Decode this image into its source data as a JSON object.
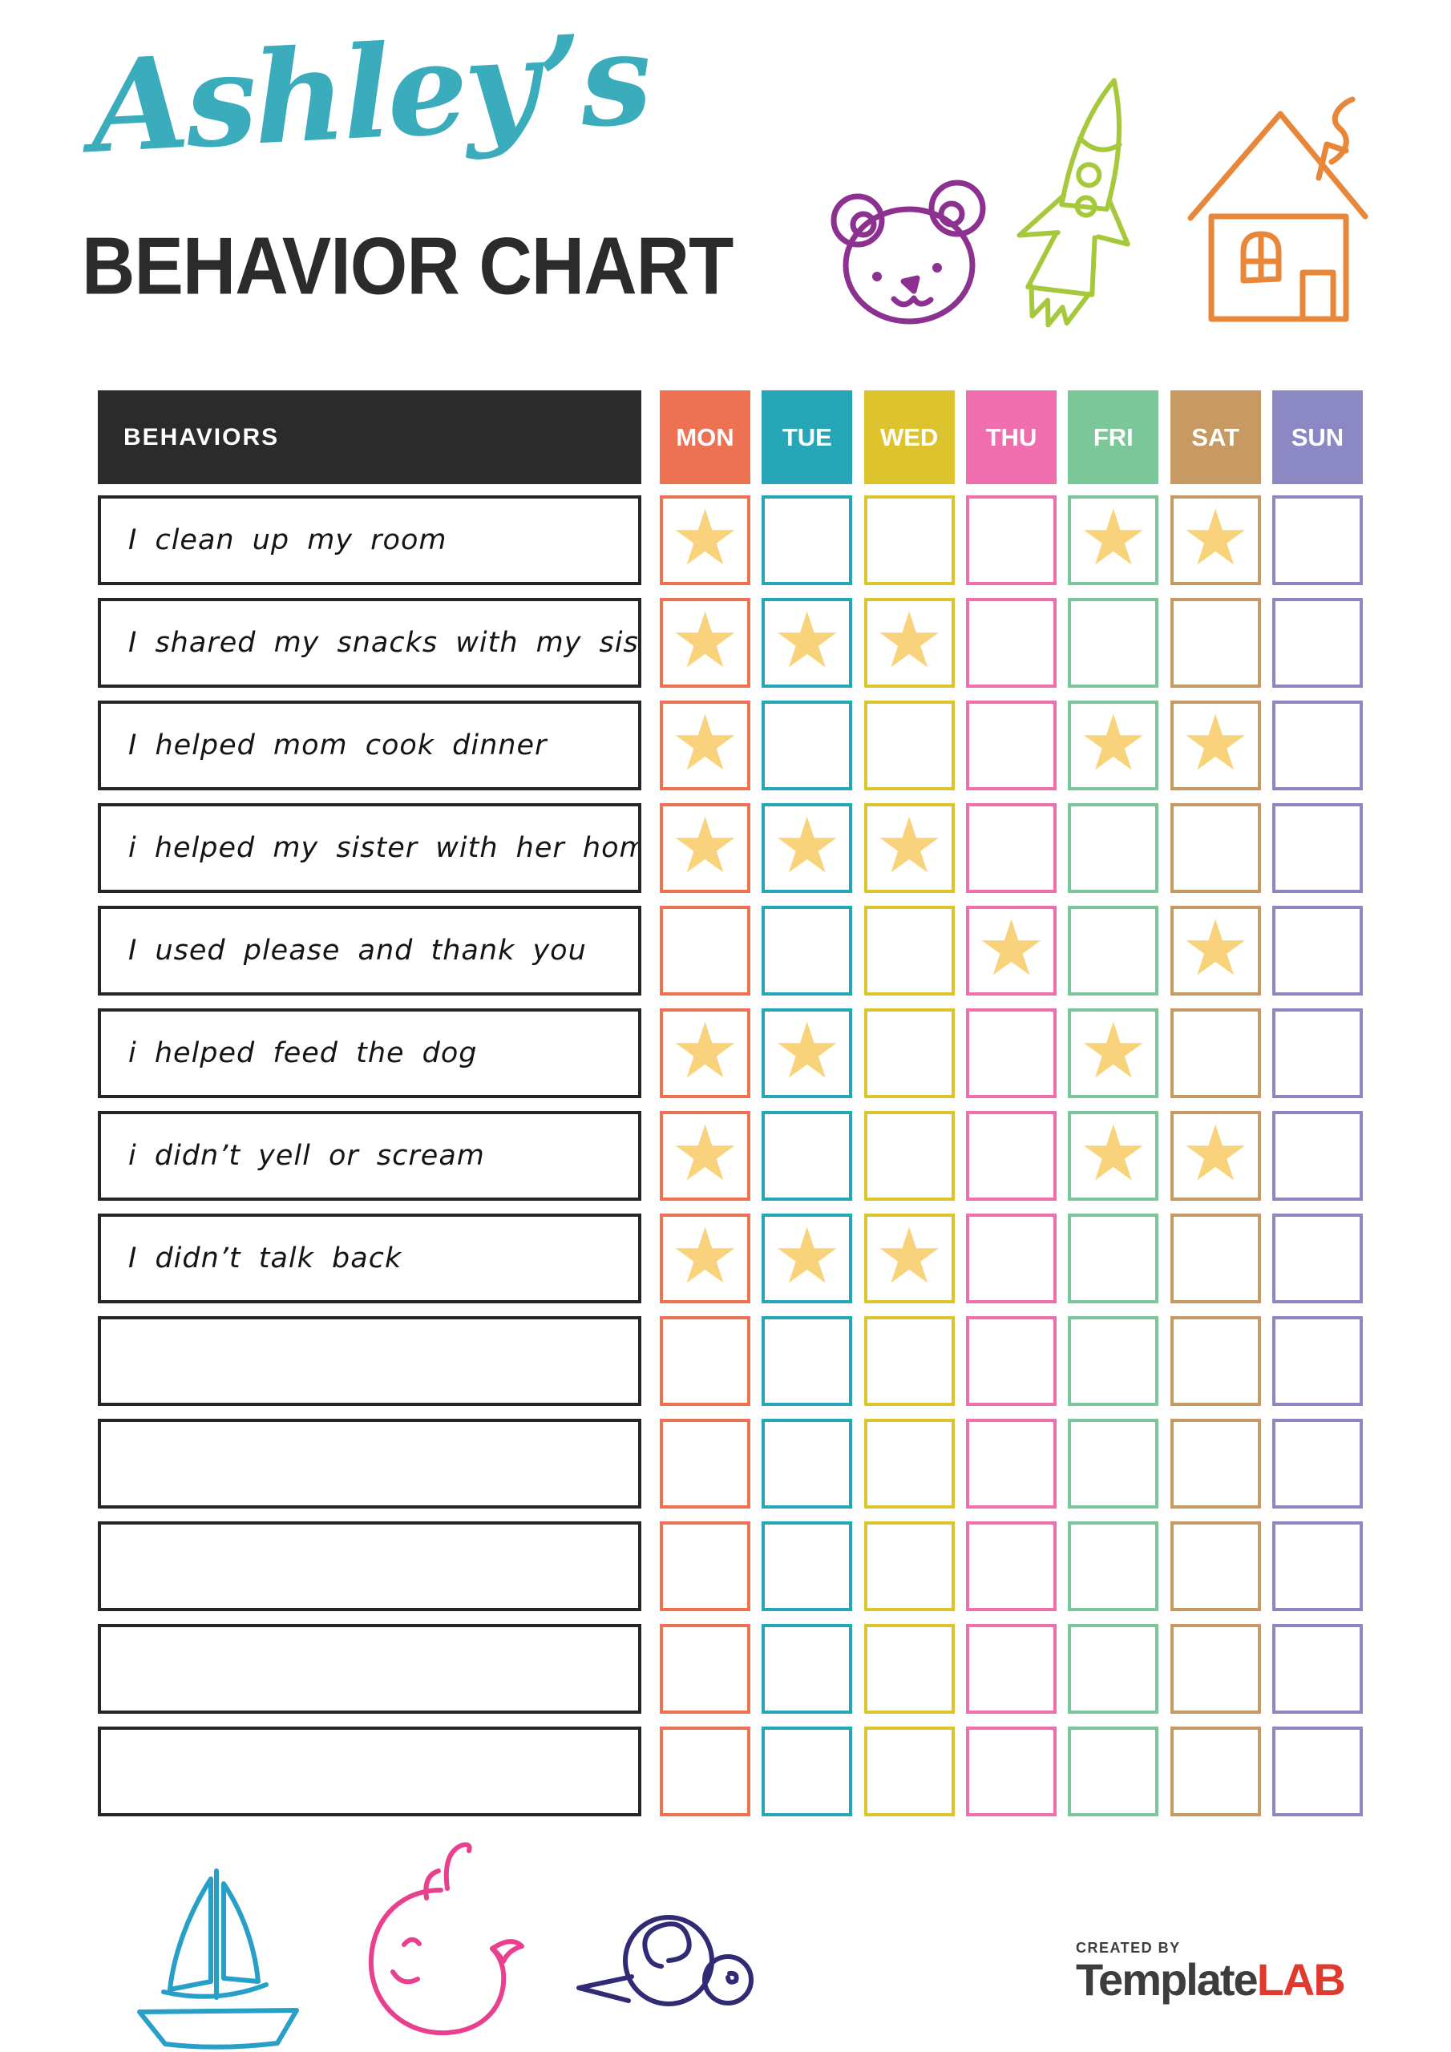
{
  "header": {
    "script_title": "Ashley’s",
    "main_title": "BEHAVIOR CHART"
  },
  "colors": {
    "script_title": "#3aacbc",
    "main_title": "#2b2b2b",
    "header_bg": "#2b2b2b",
    "star": "#f8d37c",
    "bear": "#8c3190",
    "rocket": "#a5c93b",
    "house": "#e8873a",
    "sailboat": "#279fc6",
    "whale": "#e8408f",
    "snail": "#312a75",
    "logo_dark": "#3d3d3d",
    "logo_red": "#e0392e"
  },
  "table": {
    "behaviors_header": "BEHAVIORS",
    "star_glyph": "★",
    "days": [
      {
        "label": "MON",
        "color": "#ed7153"
      },
      {
        "label": "TUE",
        "color": "#27a6b8"
      },
      {
        "label": "WED",
        "color": "#ddc42e"
      },
      {
        "label": "THU",
        "color": "#ef6fae"
      },
      {
        "label": "FRI",
        "color": "#7cc79a"
      },
      {
        "label": "SAT",
        "color": "#c69a62"
      },
      {
        "label": "SUN",
        "color": "#8c88c4"
      }
    ],
    "rows": [
      {
        "label": "I clean up my room",
        "stars": [
          "MON",
          "FRI",
          "SAT"
        ]
      },
      {
        "label": "I shared my snacks with my sister",
        "stars": [
          "MON",
          "TUE",
          "WED"
        ]
      },
      {
        "label": "I helped mom cook dinner",
        "stars": [
          "MON",
          "FRI",
          "SAT"
        ]
      },
      {
        "label": "i helped my sister with her homework",
        "stars": [
          "MON",
          "TUE",
          "WED"
        ]
      },
      {
        "label": "I used please and thank you",
        "stars": [
          "THU",
          "SAT"
        ]
      },
      {
        "label": "i helped feed the dog",
        "stars": [
          "MON",
          "TUE",
          "FRI"
        ]
      },
      {
        "label": "i didn’t yell or scream",
        "stars": [
          "MON",
          "FRI",
          "SAT"
        ]
      },
      {
        "label": "I didn’t talk back",
        "stars": [
          "MON",
          "TUE",
          "WED"
        ]
      },
      {
        "label": "",
        "stars": []
      },
      {
        "label": "",
        "stars": []
      },
      {
        "label": "",
        "stars": []
      },
      {
        "label": "",
        "stars": []
      },
      {
        "label": "",
        "stars": []
      }
    ]
  },
  "footer": {
    "created_by": "CREATED BY",
    "brand_name": "Template",
    "brand_suffix": "LAB"
  }
}
